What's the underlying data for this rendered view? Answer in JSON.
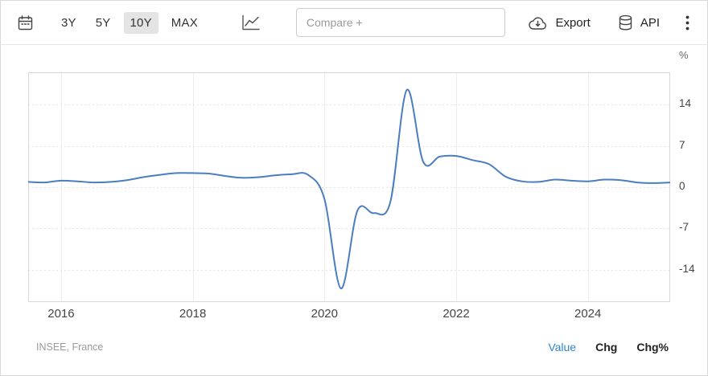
{
  "toolbar": {
    "periods": [
      {
        "label": "3Y",
        "selected": false
      },
      {
        "label": "5Y",
        "selected": false
      },
      {
        "label": "10Y",
        "selected": true
      },
      {
        "label": "MAX",
        "selected": false
      }
    ],
    "compare_placeholder": "Compare +",
    "export_label": "Export",
    "api_label": "API"
  },
  "footer": {
    "source": "INSEE, France",
    "modes": [
      {
        "label": "Value",
        "active": true
      },
      {
        "label": "Chg",
        "active": false
      },
      {
        "label": "Chg%",
        "active": false
      }
    ]
  },
  "colors": {
    "line": "#4a7ebf",
    "active_mode": "#3185c6",
    "grid": "#e6e6e6",
    "plot_border": "#d8d8d8"
  },
  "chart_data": {
    "type": "line",
    "unit": "%",
    "xlim": [
      2015.5,
      2025.25
    ],
    "ylim": [
      -19.5,
      19.5
    ],
    "xticks": [
      2016,
      2018,
      2020,
      2022,
      2024
    ],
    "yticks": [
      -14,
      -7,
      0,
      7,
      14
    ],
    "grid": true,
    "legend": false,
    "series": [
      {
        "color": "#4a7ebf",
        "x": [
          2015.5,
          2015.75,
          2016.0,
          2016.25,
          2016.5,
          2016.75,
          2017.0,
          2017.25,
          2017.5,
          2017.75,
          2018.0,
          2018.25,
          2018.5,
          2018.75,
          2019.0,
          2019.25,
          2019.5,
          2019.75,
          2020.0,
          2020.25,
          2020.5,
          2020.75,
          2021.0,
          2021.25,
          2021.5,
          2021.75,
          2022.0,
          2022.25,
          2022.5,
          2022.75,
          2023.0,
          2023.25,
          2023.5,
          2023.75,
          2024.0,
          2024.25,
          2024.5,
          2024.75,
          2025.0,
          2025.25
        ],
        "values": [
          0.9,
          0.8,
          1.1,
          1.0,
          0.8,
          0.9,
          1.2,
          1.7,
          2.1,
          2.4,
          2.4,
          2.3,
          1.9,
          1.6,
          1.7,
          2.0,
          2.2,
          2.1,
          -2.0,
          -17.2,
          -4.0,
          -4.4,
          -2.5,
          16.5,
          4.3,
          5.2,
          5.3,
          4.6,
          3.9,
          1.8,
          1.0,
          0.9,
          1.3,
          1.1,
          1.0,
          1.3,
          1.2,
          0.8,
          0.7,
          0.8
        ]
      }
    ]
  }
}
